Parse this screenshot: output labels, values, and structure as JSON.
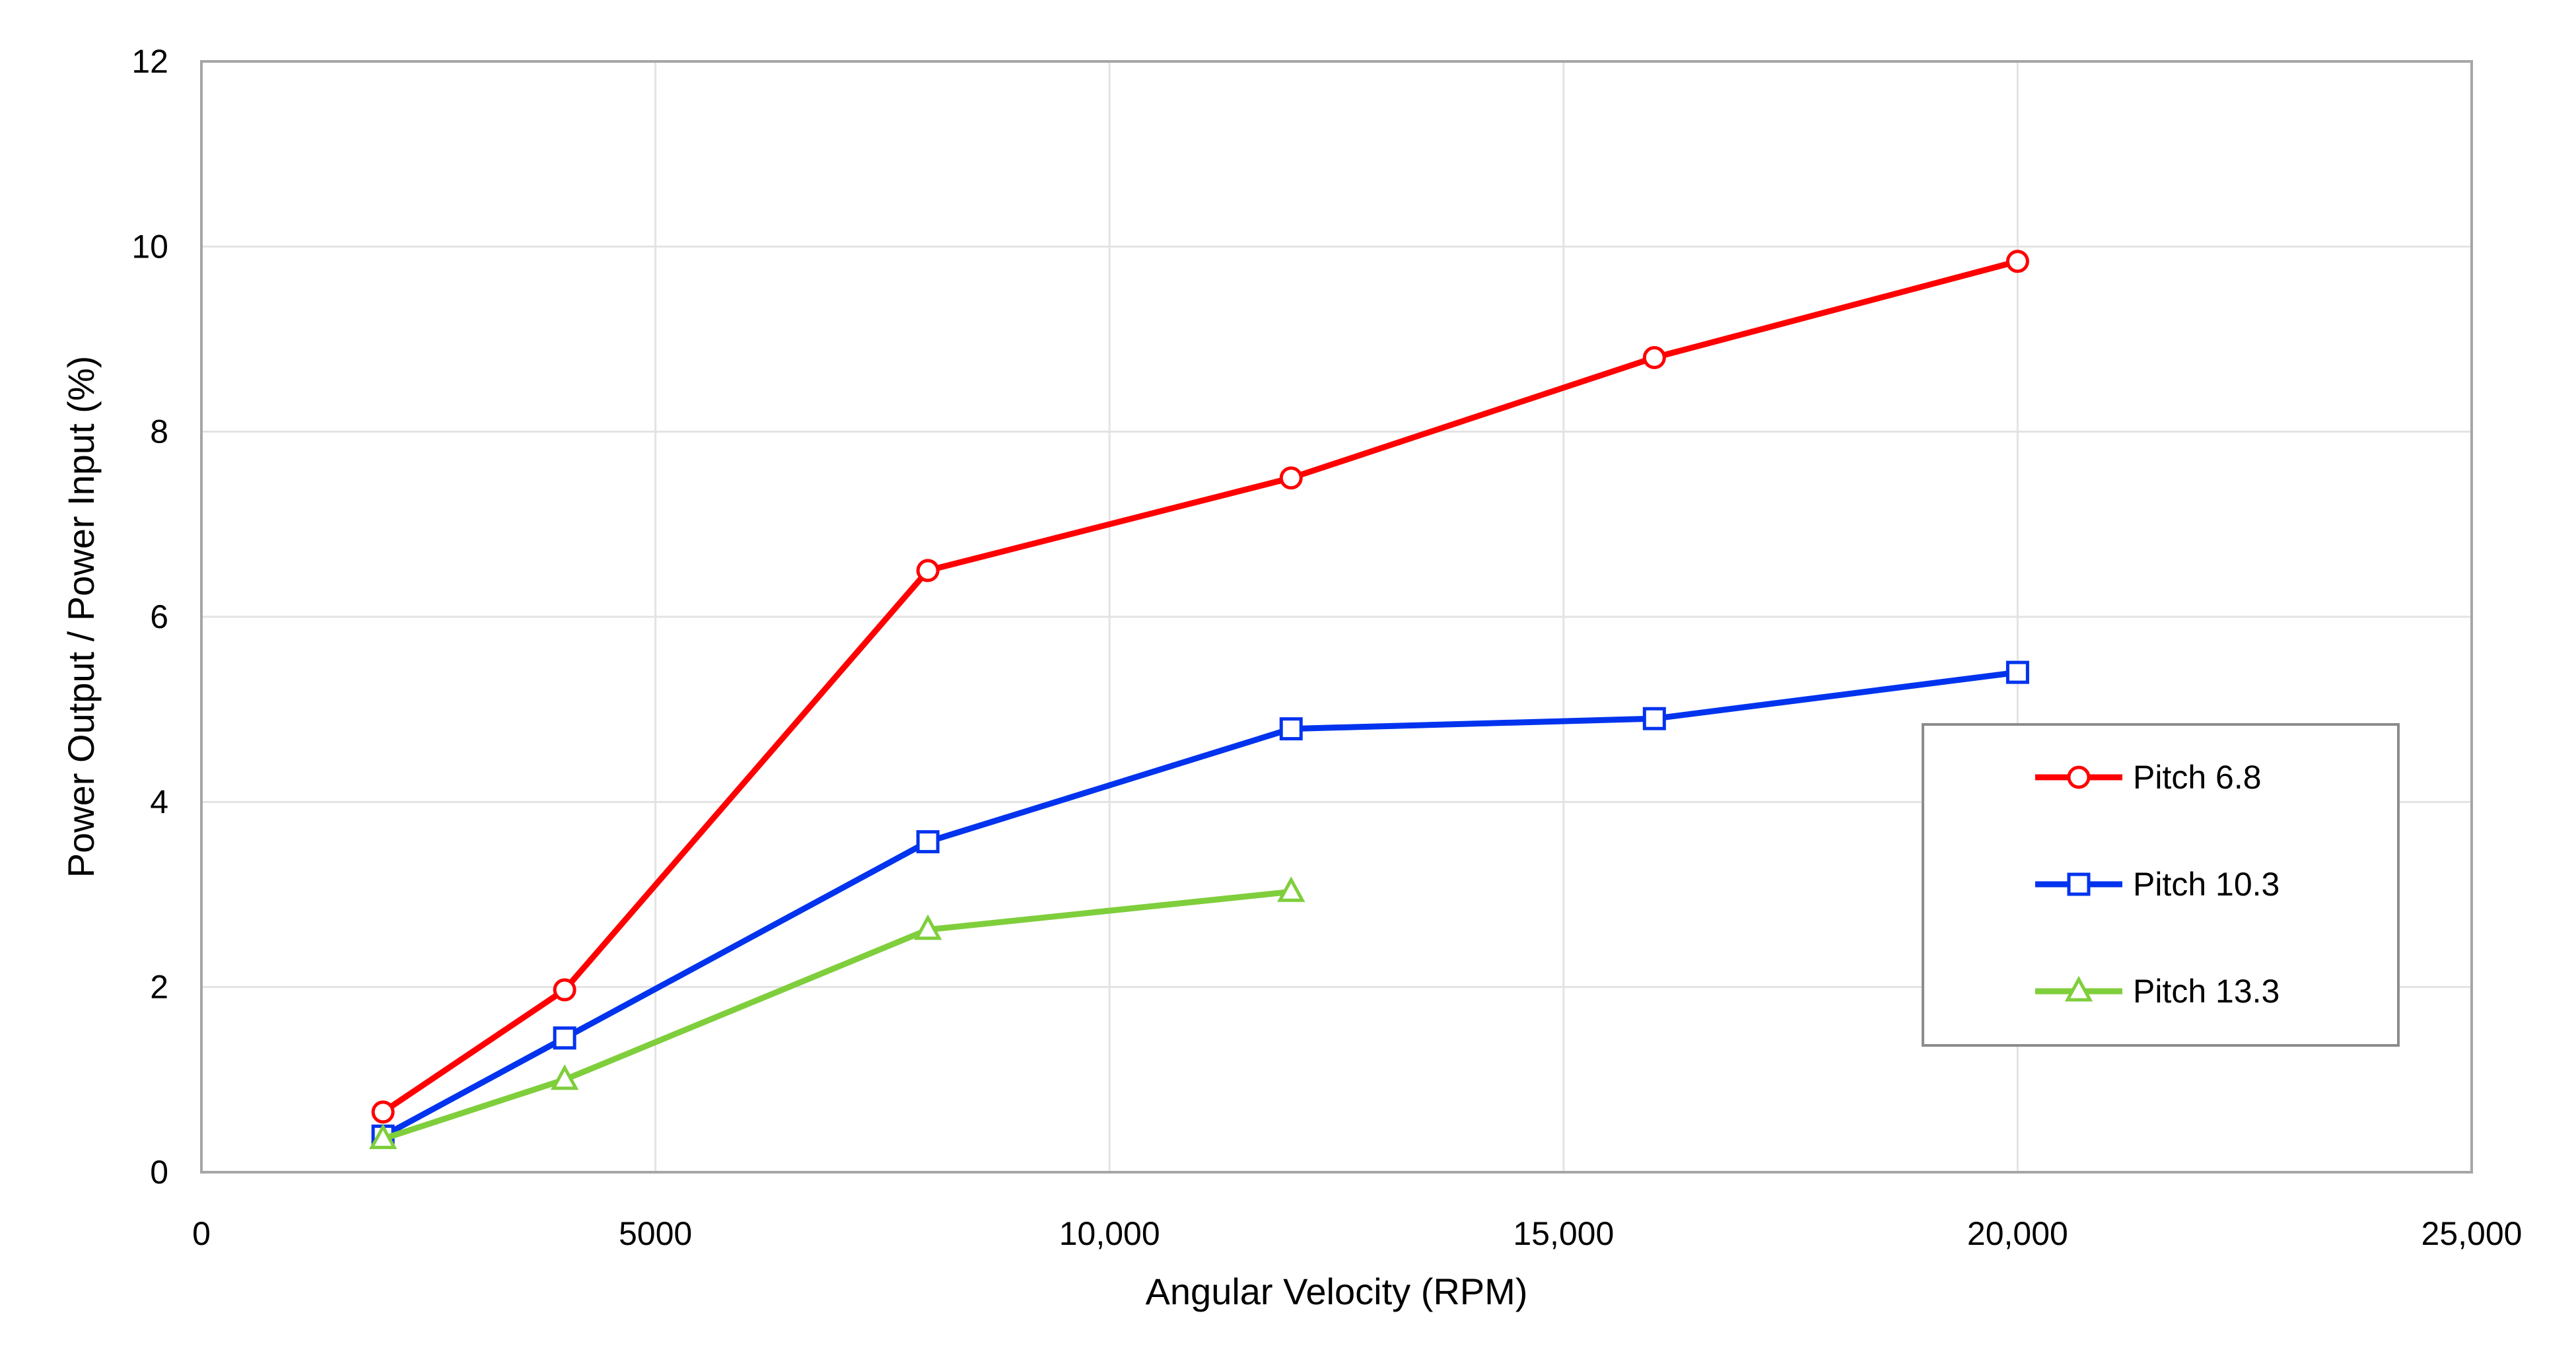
{
  "chart_data": {
    "type": "line",
    "title": "",
    "xlabel": "Angular Velocity (RPM)",
    "ylabel": "Power Output / Power Input (%)",
    "xlim": [
      0,
      25000
    ],
    "ylim": [
      0,
      12
    ],
    "x_ticks": [
      {
        "value": 0,
        "label": "0"
      },
      {
        "value": 5000,
        "label": "5000"
      },
      {
        "value": 10000,
        "label": "10,000"
      },
      {
        "value": 15000,
        "label": "15,000"
      },
      {
        "value": 20000,
        "label": "20,000"
      },
      {
        "value": 25000,
        "label": "25,000"
      }
    ],
    "y_ticks": [
      {
        "value": 0,
        "label": "0"
      },
      {
        "value": 2,
        "label": "2"
      },
      {
        "value": 4,
        "label": "4"
      },
      {
        "value": 6,
        "label": "6"
      },
      {
        "value": 8,
        "label": "8"
      },
      {
        "value": 10,
        "label": "10"
      },
      {
        "value": 12,
        "label": "12"
      }
    ],
    "grid": true,
    "legend_position": "right",
    "series": [
      {
        "name": "Pitch 6.8",
        "color": "#ff0000",
        "marker": "circle",
        "x": [
          2000,
          4000,
          8000,
          12000,
          16000,
          20000
        ],
        "y": [
          0.65,
          1.97,
          6.5,
          7.5,
          8.8,
          9.84
        ]
      },
      {
        "name": "Pitch 10.3",
        "color": "#0033ee",
        "marker": "square",
        "x": [
          2000,
          4000,
          8000,
          12000,
          16000,
          20000
        ],
        "y": [
          0.39,
          1.45,
          3.57,
          4.79,
          4.9,
          5.4
        ]
      },
      {
        "name": "Pitch 13.3",
        "color": "#7fce3c",
        "marker": "triangle",
        "x": [
          2000,
          4000,
          8000,
          12000
        ],
        "y": [
          0.36,
          1.0,
          2.62,
          3.03
        ]
      }
    ]
  }
}
